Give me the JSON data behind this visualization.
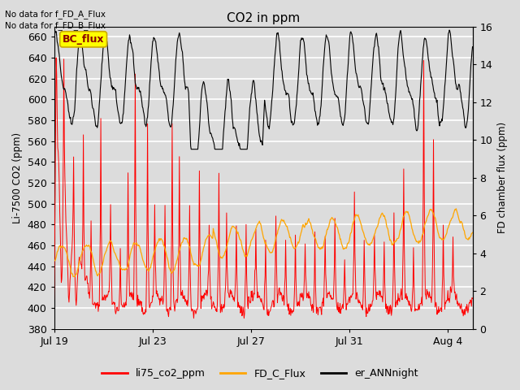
{
  "title": "CO2 in ppm",
  "ylabel_left": "Li-7500 CO2 (ppm)",
  "ylabel_right": "FD chamber flux (ppm)",
  "ylim_left": [
    380,
    670
  ],
  "ylim_right": [
    0,
    16
  ],
  "yticks_left": [
    380,
    400,
    420,
    440,
    460,
    480,
    500,
    520,
    540,
    560,
    580,
    600,
    620,
    640,
    660
  ],
  "yticks_right": [
    0,
    2,
    4,
    6,
    8,
    10,
    12,
    14,
    16
  ],
  "xlabel_ticks": [
    "Jul 19",
    "Jul 23",
    "Jul 27",
    "Jul 31",
    "Aug 4"
  ],
  "xtick_positions_days": [
    0,
    4,
    8,
    12,
    16
  ],
  "annotation1": "No data for f_FD_A_Flux",
  "annotation2": "No data for f_FD_B_Flux",
  "bc_flux_label": "BC_flux",
  "legend_entries": [
    "li75_co2_ppm",
    "FD_C_Flux",
    "er_ANNnight"
  ],
  "legend_colors": [
    "#ff0000",
    "#ffa500",
    "#000000"
  ],
  "color_red": "#ff0000",
  "color_orange": "#ffa500",
  "color_black": "#000000",
  "bg_color": "#dcdcdc",
  "plot_bg_color": "#dcdcdc",
  "grid_color": "#ffffff",
  "bc_flux_box_facecolor": "#ffff00",
  "bc_flux_box_edgecolor": "#ccaa00",
  "bc_flux_text_color": "#8b0000",
  "total_days": 17,
  "samples_per_day": 48
}
